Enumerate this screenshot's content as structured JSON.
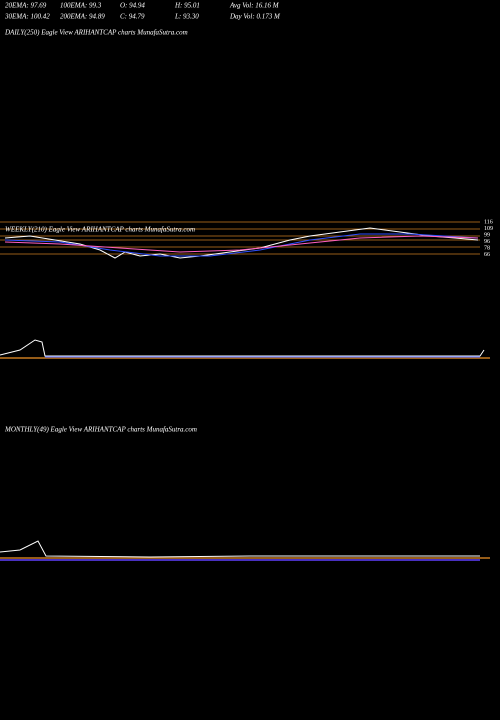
{
  "header": {
    "rows": [
      [
        "20EMA: 97.69",
        "100EMA: 99.3",
        "O: 94.94",
        "H: 95.01",
        "Avg Vol: 16.16  M"
      ],
      [
        "30EMA: 100.42",
        "200EMA: 94.89",
        "C: 94.79",
        "L: 93.30",
        "Day Vol: 0.173 M"
      ]
    ]
  },
  "panels": [
    {
      "title": "DAILY(250) Eagle  View  ARIHANTCAP charts MunafaSutra.com"
    },
    {
      "title": "WEEKLY(210) Eagle  View  ARIHANTCAP charts MunafaSutra.com",
      "axis_labels": [
        "116",
        "109",
        "99",
        "96",
        "78",
        "66"
      ]
    },
    {
      "title": "MONTHLY(49) Eagle  View  ARIHANTCAP charts MunafaSutra.com"
    }
  ]
}
